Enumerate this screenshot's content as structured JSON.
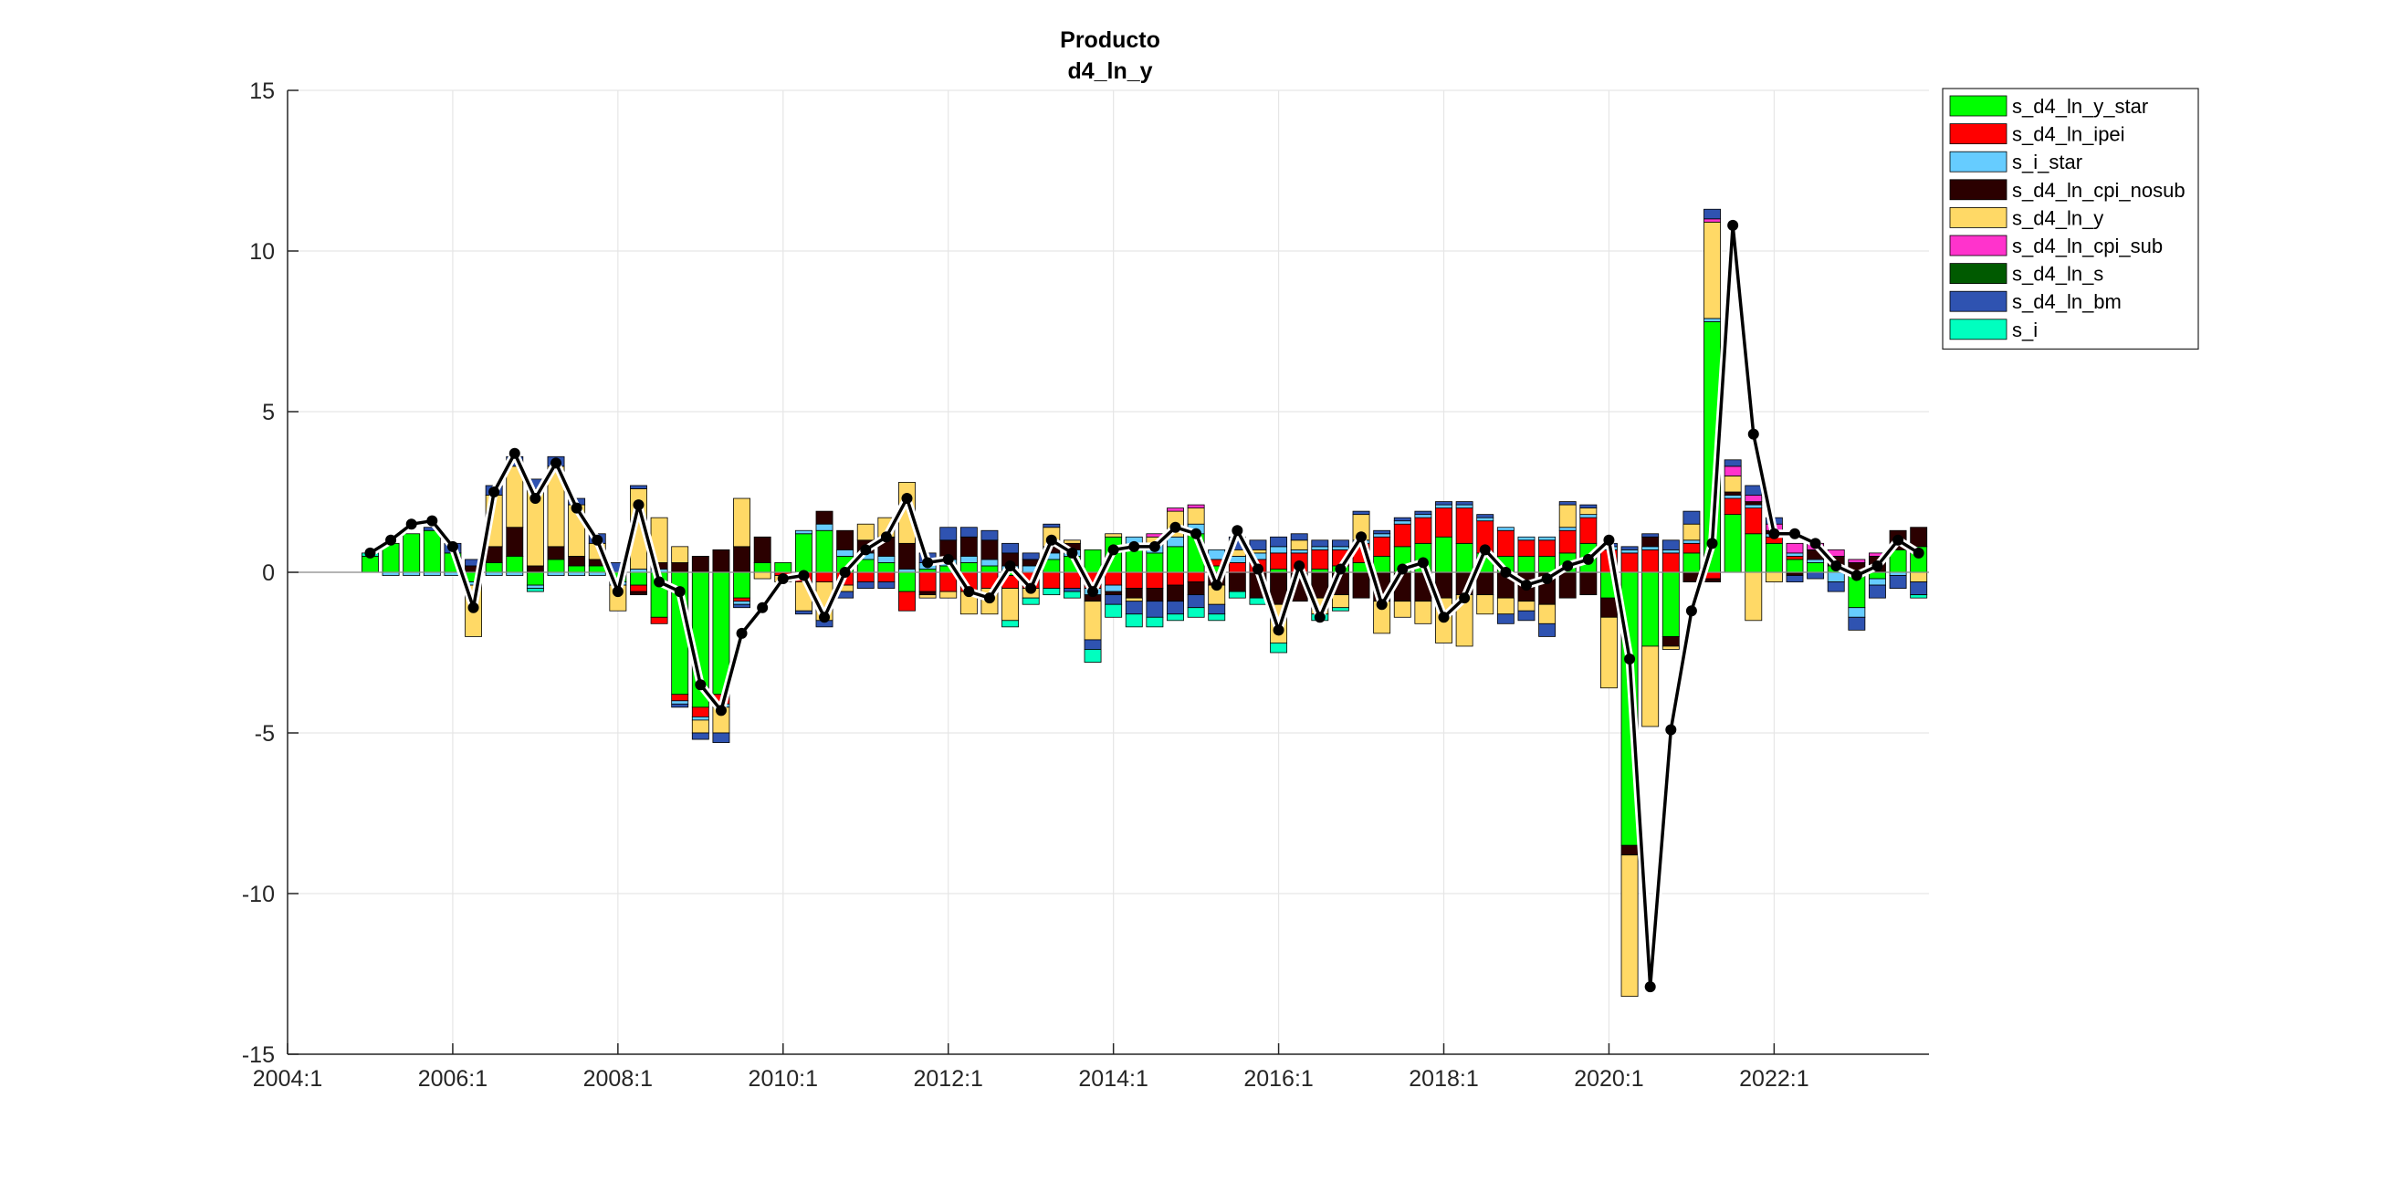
{
  "chart_data": {
    "type": "bar",
    "title": "Producto",
    "subtitle": "d4_ln_y",
    "xlabel": "",
    "ylabel": "",
    "ylim": [
      -15,
      15
    ],
    "yticks": [
      -15,
      -10,
      -5,
      0,
      5,
      10,
      15
    ],
    "xlim": [
      2004.0,
      2023.875
    ],
    "xticks": [
      {
        "value": 2004.0,
        "label": "2004:1"
      },
      {
        "value": 2006.0,
        "label": "2006:1"
      },
      {
        "value": 2008.0,
        "label": "2008:1"
      },
      {
        "value": 2010.0,
        "label": "2010:1"
      },
      {
        "value": 2012.0,
        "label": "2012:1"
      },
      {
        "value": 2014.0,
        "label": "2014:1"
      },
      {
        "value": 2016.0,
        "label": "2016:1"
      },
      {
        "value": 2018.0,
        "label": "2018:1"
      },
      {
        "value": 2020.0,
        "label": "2020:1"
      },
      {
        "value": 2022.0,
        "label": "2022:1"
      }
    ],
    "grid": true,
    "legend_position": "top-right",
    "x": [
      2005.0,
      2005.25,
      2005.5,
      2005.75,
      2006.0,
      2006.25,
      2006.5,
      2006.75,
      2007.0,
      2007.25,
      2007.5,
      2007.75,
      2008.0,
      2008.25,
      2008.5,
      2008.75,
      2009.0,
      2009.25,
      2009.5,
      2009.75,
      2010.0,
      2010.25,
      2010.5,
      2010.75,
      2011.0,
      2011.25,
      2011.5,
      2011.75,
      2012.0,
      2012.25,
      2012.5,
      2012.75,
      2013.0,
      2013.25,
      2013.5,
      2013.75,
      2014.0,
      2014.25,
      2014.5,
      2014.75,
      2015.0,
      2015.25,
      2015.5,
      2015.75,
      2016.0,
      2016.25,
      2016.5,
      2016.75,
      2017.0,
      2017.25,
      2017.5,
      2017.75,
      2018.0,
      2018.25,
      2018.5,
      2018.75,
      2019.0,
      2019.25,
      2019.5,
      2019.75,
      2020.0,
      2020.25,
      2020.5,
      2020.75,
      2021.0,
      2021.25,
      2021.5,
      2021.75,
      2022.0,
      2022.25,
      2022.5,
      2022.75,
      2023.0,
      2023.25,
      2023.5,
      2023.75
    ],
    "series": [
      {
        "name": "s_d4_ln_y_star",
        "color": "#00FF00",
        "values": [
          0.5,
          0.9,
          1.2,
          1.3,
          0.6,
          -0.3,
          0.3,
          0.5,
          -0.4,
          0.4,
          0.2,
          0.2,
          -0.3,
          -0.4,
          -1.4,
          -3.8,
          -4.2,
          -3.8,
          -0.8,
          0.3,
          0.3,
          1.2,
          1.3,
          0.5,
          0.4,
          0.3,
          -0.6,
          0.1,
          0.2,
          0.3,
          0.2,
          -0.1,
          0.0,
          0.4,
          0.5,
          0.7,
          1.1,
          0.8,
          0.6,
          0.8,
          1.2,
          0.2,
          0.0,
          0.0,
          0.1,
          0.0,
          0.1,
          0.2,
          0.3,
          0.5,
          0.8,
          0.9,
          1.1,
          0.9,
          0.6,
          0.5,
          0.5,
          0.5,
          0.6,
          0.9,
          -0.8,
          -8.5,
          -2.3,
          -2.0,
          0.6,
          7.8,
          1.8,
          1.2,
          0.9,
          0.4,
          0.3,
          0.2,
          -1.1,
          -0.2,
          0.7,
          0.8
        ]
      },
      {
        "name": "s_d4_ln_ipei",
        "color": "#FF0000",
        "values": [
          0.0,
          0.0,
          0.0,
          0.0,
          0.0,
          0.0,
          0.0,
          0.0,
          0.0,
          0.0,
          0.0,
          0.0,
          0.0,
          -0.2,
          -0.2,
          -0.2,
          -0.3,
          -0.3,
          -0.1,
          0.0,
          -0.1,
          -0.3,
          -0.3,
          -0.4,
          -0.3,
          -0.3,
          -0.6,
          -0.6,
          -0.6,
          -0.6,
          -0.5,
          -0.4,
          -0.5,
          -0.5,
          -0.5,
          -0.5,
          -0.4,
          -0.5,
          -0.5,
          -0.4,
          -0.3,
          0.2,
          0.3,
          0.4,
          0.5,
          0.6,
          0.6,
          0.5,
          0.6,
          0.6,
          0.7,
          0.8,
          0.9,
          1.1,
          1.0,
          0.8,
          0.5,
          0.5,
          0.7,
          0.8,
          0.7,
          0.6,
          0.7,
          0.6,
          0.3,
          -0.2,
          0.5,
          0.8,
          0.2,
          0.1,
          0.0,
          0.0,
          0.0,
          0.0,
          0.0,
          0.0
        ]
      },
      {
        "name": "s_i_star",
        "color": "#66CCFF",
        "values": [
          0.0,
          -0.1,
          -0.1,
          -0.1,
          -0.1,
          -0.1,
          -0.1,
          -0.1,
          -0.1,
          -0.1,
          -0.1,
          -0.1,
          -0.1,
          0.1,
          0.1,
          -0.1,
          -0.1,
          -0.1,
          -0.1,
          0.0,
          0.0,
          0.1,
          0.2,
          0.2,
          0.2,
          0.2,
          0.1,
          0.2,
          0.2,
          0.2,
          0.2,
          0.2,
          0.2,
          0.2,
          0.2,
          -0.2,
          -0.2,
          0.3,
          0.3,
          0.3,
          0.3,
          0.3,
          0.2,
          0.2,
          0.2,
          0.1,
          0.1,
          0.1,
          0.1,
          0.1,
          0.1,
          0.1,
          0.1,
          0.1,
          0.1,
          0.1,
          0.1,
          0.1,
          0.1,
          0.1,
          0.1,
          0.1,
          0.1,
          0.1,
          0.1,
          0.1,
          0.1,
          0.1,
          0.1,
          0.1,
          0.1,
          -0.3,
          -0.3,
          -0.2,
          -0.1,
          0.0
        ]
      },
      {
        "name": "s_d4_ln_cpi_nosub",
        "color": "#2B0000",
        "values": [
          0.0,
          0.0,
          0.0,
          0.0,
          0.0,
          0.2,
          0.5,
          0.9,
          0.2,
          0.4,
          0.3,
          0.2,
          0.0,
          -0.1,
          0.2,
          0.3,
          0.5,
          0.7,
          0.8,
          0.8,
          0.0,
          0.0,
          0.4,
          0.6,
          0.4,
          0.6,
          0.8,
          -0.1,
          0.6,
          0.6,
          0.6,
          0.4,
          0.2,
          0.2,
          0.2,
          -0.2,
          -0.1,
          -0.3,
          -0.4,
          -0.5,
          -0.4,
          -0.4,
          -0.6,
          -0.8,
          -1.0,
          -0.9,
          -0.8,
          -0.7,
          -0.8,
          -0.9,
          -0.9,
          -0.9,
          -0.8,
          -0.7,
          -0.7,
          -0.8,
          -0.9,
          -1.0,
          -0.8,
          -0.7,
          -0.6,
          -0.3,
          0.3,
          -0.3,
          -0.3,
          -0.1,
          0.1,
          0.1,
          0.1,
          -0.1,
          0.3,
          0.3,
          0.3,
          0.5,
          0.6,
          0.6
        ]
      },
      {
        "name": "s_d4_ln_y",
        "color": "#FFD966",
        "values": [
          0.0,
          0.0,
          0.0,
          0.0,
          0.0,
          -1.6,
          1.6,
          1.9,
          2.4,
          2.5,
          1.6,
          0.5,
          -0.8,
          2.5,
          1.4,
          0.5,
          -0.4,
          -0.8,
          1.5,
          -0.2,
          -0.2,
          -0.9,
          -1.2,
          -0.2,
          0.5,
          0.6,
          1.9,
          -0.1,
          -0.2,
          -0.7,
          -0.8,
          -1.0,
          -0.3,
          0.6,
          0.1,
          -1.2,
          0.1,
          -0.1,
          0.2,
          0.8,
          0.5,
          -0.6,
          0.2,
          0.1,
          -1.2,
          0.3,
          -0.5,
          -0.4,
          0.8,
          -1.0,
          -0.5,
          -0.7,
          -1.4,
          -1.6,
          -0.6,
          -0.5,
          -0.3,
          -0.6,
          0.7,
          0.2,
          -2.2,
          -4.4,
          -2.5,
          -0.1,
          0.5,
          3.0,
          0.5,
          -1.5,
          -0.3,
          0.0,
          0.0,
          0.0,
          0.0,
          0.0,
          0.0,
          -0.3
        ]
      },
      {
        "name": "s_d4_ln_cpi_sub",
        "color": "#FF33CC",
        "values": [
          0.0,
          0.0,
          0.0,
          0.0,
          0.0,
          0.0,
          0.0,
          0.0,
          0.0,
          0.0,
          0.0,
          0.0,
          0.0,
          0.0,
          0.0,
          0.0,
          0.0,
          0.0,
          0.0,
          0.0,
          0.0,
          0.0,
          0.0,
          0.0,
          0.0,
          0.0,
          0.0,
          0.0,
          0.0,
          0.0,
          0.0,
          0.0,
          0.0,
          0.0,
          0.0,
          0.0,
          0.0,
          0.0,
          0.1,
          0.1,
          0.1,
          0.0,
          0.0,
          0.0,
          0.0,
          0.0,
          0.0,
          0.0,
          0.0,
          0.0,
          0.0,
          0.0,
          0.0,
          0.0,
          0.0,
          0.0,
          0.0,
          0.0,
          0.0,
          0.0,
          0.0,
          0.0,
          0.0,
          0.0,
          0.0,
          0.1,
          0.3,
          0.2,
          0.2,
          0.3,
          0.2,
          0.2,
          0.1,
          0.1,
          0.0,
          0.0
        ]
      },
      {
        "name": "s_d4_ln_s",
        "color": "#005A00",
        "values": [
          0.0,
          0.0,
          0.0,
          0.0,
          0.0,
          0.0,
          0.0,
          0.0,
          0.0,
          0.0,
          0.0,
          0.0,
          0.0,
          0.0,
          0.0,
          0.0,
          0.0,
          0.0,
          0.0,
          0.0,
          0.0,
          0.0,
          0.0,
          0.0,
          0.0,
          0.0,
          0.0,
          0.0,
          0.0,
          0.0,
          0.0,
          0.0,
          0.0,
          0.0,
          0.0,
          0.0,
          0.0,
          0.0,
          0.0,
          0.0,
          0.0,
          0.0,
          0.0,
          0.0,
          0.0,
          0.0,
          0.0,
          0.0,
          0.0,
          0.0,
          0.0,
          0.0,
          0.0,
          0.0,
          0.0,
          0.0,
          0.0,
          0.0,
          0.0,
          0.0,
          0.0,
          0.0,
          0.0,
          0.0,
          0.0,
          0.0,
          0.0,
          0.0,
          0.0,
          0.0,
          0.0,
          0.0,
          0.0,
          0.0,
          0.0,
          0.0
        ]
      },
      {
        "name": "s_d4_ln_bm",
        "color": "#2F53B1",
        "values": [
          0.0,
          0.0,
          0.0,
          0.1,
          0.3,
          0.2,
          0.3,
          0.3,
          0.3,
          0.3,
          0.2,
          0.3,
          0.3,
          0.1,
          0.0,
          -0.1,
          -0.2,
          -0.3,
          -0.1,
          0.0,
          0.0,
          -0.1,
          -0.2,
          -0.2,
          -0.2,
          -0.2,
          0.0,
          0.3,
          0.4,
          0.3,
          0.3,
          0.3,
          0.2,
          0.1,
          -0.1,
          -0.3,
          -0.3,
          -0.4,
          -0.5,
          -0.4,
          -0.4,
          -0.3,
          0.4,
          0.3,
          0.3,
          0.2,
          0.2,
          0.2,
          0.1,
          0.1,
          0.1,
          0.1,
          0.1,
          0.1,
          0.1,
          -0.3,
          -0.3,
          -0.4,
          0.1,
          0.1,
          0.1,
          0.1,
          0.1,
          0.3,
          0.4,
          0.3,
          0.2,
          0.3,
          0.2,
          -0.2,
          -0.2,
          -0.3,
          -0.4,
          -0.4,
          -0.4,
          -0.4
        ]
      },
      {
        "name": "s_i",
        "color": "#00FFBF",
        "values": [
          0.1,
          0.0,
          0.0,
          0.0,
          0.0,
          0.0,
          0.0,
          0.0,
          -0.1,
          0.0,
          0.0,
          0.0,
          0.0,
          0.0,
          0.0,
          0.0,
          0.0,
          0.0,
          0.0,
          0.0,
          0.0,
          0.0,
          0.0,
          0.0,
          0.0,
          0.0,
          0.0,
          0.0,
          0.0,
          0.0,
          0.0,
          -0.2,
          -0.2,
          -0.2,
          -0.2,
          -0.4,
          -0.4,
          -0.4,
          -0.3,
          -0.2,
          -0.3,
          -0.2,
          -0.2,
          -0.2,
          -0.3,
          0.0,
          -0.2,
          -0.1,
          0.0,
          0.0,
          0.0,
          0.0,
          0.0,
          0.0,
          0.0,
          0.0,
          0.0,
          0.0,
          0.0,
          0.0,
          0.0,
          0.0,
          0.0,
          0.0,
          0.0,
          0.0,
          0.0,
          0.0,
          0.0,
          0.0,
          0.0,
          0.0,
          0.0,
          0.0,
          0.0,
          -0.1
        ]
      }
    ],
    "line": {
      "name": "d4_ln_y",
      "color": "#000000",
      "values": [
        0.6,
        1.0,
        1.5,
        1.6,
        0.8,
        -1.1,
        2.5,
        3.7,
        2.3,
        3.4,
        2.0,
        1.0,
        -0.6,
        2.1,
        -0.3,
        -0.6,
        -3.5,
        -4.3,
        -1.9,
        -1.1,
        -0.2,
        -0.1,
        -1.4,
        0.0,
        0.7,
        1.1,
        2.3,
        0.3,
        0.4,
        -0.6,
        -0.8,
        0.2,
        -0.5,
        1.0,
        0.6,
        -0.6,
        0.7,
        0.8,
        0.8,
        1.4,
        1.2,
        -0.4,
        1.3,
        0.1,
        -1.8,
        0.2,
        -1.4,
        0.1,
        1.1,
        -1.0,
        0.1,
        0.3,
        -1.4,
        -0.8,
        0.7,
        0.0,
        -0.4,
        -0.2,
        0.2,
        0.4,
        1.0,
        -2.7,
        -12.9,
        -4.9,
        -1.2,
        0.9,
        10.8,
        4.3,
        1.2,
        1.2,
        0.9,
        0.2,
        -0.1,
        0.2,
        1.0,
        0.6
      ]
    }
  }
}
